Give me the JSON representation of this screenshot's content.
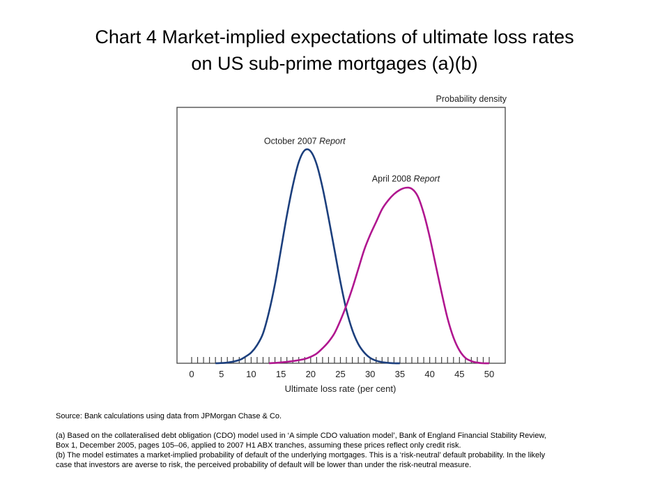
{
  "title": {
    "line1": "Chart 4  Market-implied expectations of ultimate loss rates",
    "line2": "on US sub-prime mortgages (a)(b)"
  },
  "chart_data": {
    "type": "line",
    "title": "Chart 4  Market-implied expectations of ultimate loss rates on US sub-prime mortgages (a)(b)",
    "xlabel": "Ultimate loss rate (per cent)",
    "ylabel": "Probability density",
    "xlim": [
      0,
      50
    ],
    "ylim": [
      0,
      1.0
    ],
    "x_ticks": [
      0,
      5,
      10,
      15,
      20,
      25,
      30,
      35,
      40,
      45,
      50
    ],
    "minor_tick_step": 1,
    "grid": false,
    "series": [
      {
        "name": "October 2007",
        "name_suffix": "Report",
        "color": "#1c3f7d",
        "x": [
          4,
          6,
          8,
          9,
          10,
          11,
          12,
          13,
          14,
          15,
          16,
          17,
          18,
          19,
          20,
          21,
          22,
          23,
          24,
          25,
          26,
          27,
          28,
          29,
          30,
          31,
          32,
          33,
          34,
          35
        ],
        "y": [
          0.0,
          0.003,
          0.015,
          0.03,
          0.05,
          0.085,
          0.14,
          0.24,
          0.37,
          0.53,
          0.69,
          0.83,
          0.94,
          0.995,
          0.99,
          0.93,
          0.82,
          0.68,
          0.53,
          0.38,
          0.25,
          0.155,
          0.09,
          0.05,
          0.025,
          0.012,
          0.005,
          0.002,
          0.0,
          0.0
        ]
      },
      {
        "name": "April 2008",
        "name_suffix": "Report",
        "color": "#b0168f",
        "x": [
          13,
          15,
          17,
          19,
          20,
          21,
          22,
          23,
          24,
          25,
          26,
          27,
          28,
          29,
          30,
          31,
          32,
          33,
          34,
          35,
          36,
          37,
          38,
          39,
          40,
          41,
          42,
          43,
          44,
          45,
          46,
          47,
          48,
          49,
          50
        ],
        "y": [
          0.0,
          0.004,
          0.01,
          0.02,
          0.03,
          0.045,
          0.07,
          0.1,
          0.14,
          0.2,
          0.27,
          0.35,
          0.44,
          0.53,
          0.6,
          0.66,
          0.72,
          0.76,
          0.79,
          0.81,
          0.82,
          0.815,
          0.78,
          0.7,
          0.59,
          0.46,
          0.33,
          0.21,
          0.12,
          0.06,
          0.025,
          0.01,
          0.003,
          0.0,
          0.0
        ]
      }
    ],
    "annotations": [
      {
        "text": "October 2007",
        "italic_text": "Report",
        "series": "October 2007"
      },
      {
        "text": "April 2008",
        "italic_text": "Report",
        "series": "April 2008"
      }
    ]
  },
  "notes": {
    "source": "Source:  Bank calculations using data from JPMorgan Chase & Co.",
    "note_a": "(a)  Based on the collateralised debt obligation (CDO) model used in ‘A simple CDO valuation model’, Bank of England Financial Stability Review, Box 1, December 2005, pages 105–06, applied to 2007 H1 ABX tranches, assuming these prices reflect only credit risk.",
    "note_b": "(b)  The model estimates a market-implied probability of default of the underlying mortgages.  This is a ‘risk-neutral’ default probability.  In the likely case that investors are averse to risk, the perceived probability of default will be lower than under the risk-neutral measure."
  }
}
